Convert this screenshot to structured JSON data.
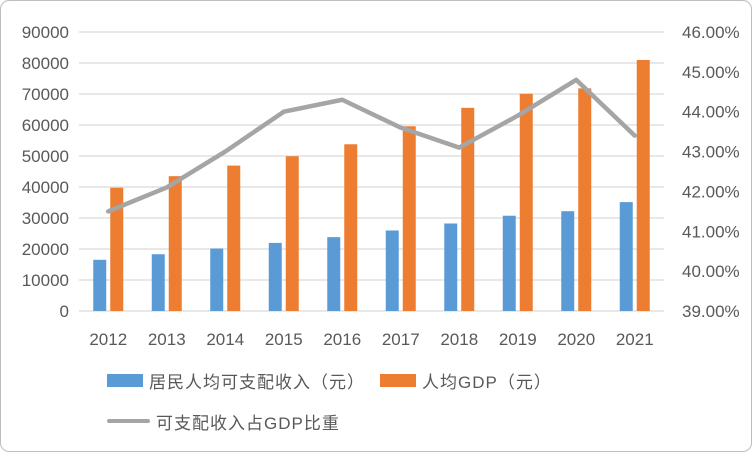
{
  "chart_data": {
    "type": "combo-bar-line",
    "title": "",
    "categories": [
      "2012",
      "2013",
      "2014",
      "2015",
      "2016",
      "2017",
      "2018",
      "2019",
      "2020",
      "2021"
    ],
    "series": [
      {
        "name": "居民人均可支配收入（元）",
        "chart_type": "bar",
        "axis": "left",
        "color": "#5B9BD5",
        "values": [
          16510,
          18311,
          20167,
          21966,
          23821,
          25974,
          28228,
          30733,
          32189,
          35128
        ]
      },
      {
        "name": "人均GDP（元）",
        "chart_type": "bar",
        "axis": "left",
        "color": "#ED7D31",
        "values": [
          39771,
          43497,
          46912,
          49922,
          53783,
          59592,
          65534,
          70078,
          71828,
          80976
        ]
      },
      {
        "name": "可支配收入占GDP比重",
        "chart_type": "line",
        "axis": "right",
        "color": "#A5A5A5",
        "unit": "%",
        "values": [
          41.5,
          42.1,
          43.0,
          44.0,
          44.3,
          43.6,
          43.1,
          43.9,
          44.8,
          43.4
        ]
      }
    ],
    "left_axis": {
      "min": 0,
      "max": 90000,
      "step": 10000,
      "tick_labels": [
        "0",
        "10000",
        "20000",
        "30000",
        "40000",
        "50000",
        "60000",
        "70000",
        "80000",
        "90000"
      ]
    },
    "right_axis": {
      "min": 39,
      "max": 46,
      "step": 1,
      "tick_labels": [
        "39.00%",
        "40.00%",
        "41.00%",
        "42.00%",
        "43.00%",
        "44.00%",
        "45.00%",
        "46.00%"
      ]
    },
    "grid": true,
    "legend_position": "bottom-left"
  },
  "style": {
    "bar_income_color": "#5B9BD5",
    "bar_gdp_color": "#ED7D31",
    "line_color": "#A5A5A5",
    "grid_color": "#D9D9D9",
    "axis_text_color": "#595959",
    "background": "#FFFFFF",
    "border_color": "#BDBDBD"
  }
}
